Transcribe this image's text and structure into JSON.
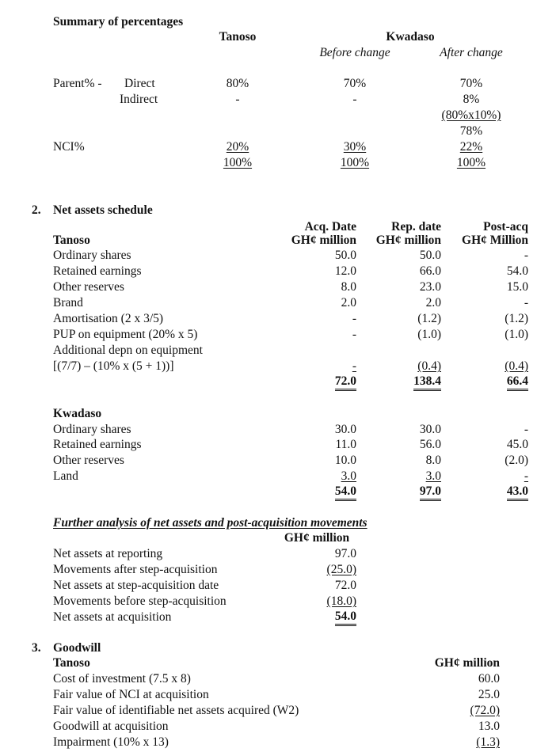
{
  "summary": {
    "title": "Summary of percentages",
    "headers": {
      "tanoso": "Tanoso",
      "kwadaso": "Kwadaso",
      "before": "Before change",
      "after": "After change"
    },
    "rows": [
      {
        "label": "Parent% -",
        "sub": "Direct",
        "tanoso": "80%",
        "before": "70%",
        "after": "70%"
      },
      {
        "label": "",
        "sub": "Indirect",
        "tanoso": "-",
        "before": "-",
        "after": "8%"
      },
      {
        "label": "",
        "sub": "",
        "tanoso": "",
        "before": "",
        "after": "(80%x10%)"
      },
      {
        "label": "",
        "sub": "",
        "tanoso": "",
        "before": "",
        "after": "78%"
      },
      {
        "label": "NCI%",
        "sub": "",
        "tanoso": "20%",
        "before": "30%",
        "after": "22%"
      },
      {
        "label": "",
        "sub": "",
        "tanoso": "100%",
        "before": "100%",
        "after": "100%"
      }
    ]
  },
  "net_assets": {
    "number": "2.",
    "title": "Net assets schedule",
    "col_headers": [
      {
        "top": "Acq. Date",
        "unit": "GH¢ million"
      },
      {
        "top": "Rep. date",
        "unit": "GH¢ million"
      },
      {
        "top": "Post-acq",
        "unit": "GH¢ Million"
      }
    ],
    "tanoso": {
      "heading": "Tanoso",
      "rows": [
        {
          "label": "Ordinary shares",
          "values": [
            "50.0",
            "50.0",
            "-"
          ]
        },
        {
          "label": "Retained earnings",
          "values": [
            "12.0",
            "66.0",
            "54.0"
          ]
        },
        {
          "label": "Other reserves",
          "values": [
            "8.0",
            "23.0",
            "15.0"
          ]
        },
        {
          "label": "Brand",
          "values": [
            "2.0",
            "2.0",
            "-"
          ]
        },
        {
          "label": "Amortisation (2 x 3/5)",
          "values": [
            "-",
            "(1.2)",
            "(1.2)"
          ]
        },
        {
          "label": "PUP on equipment (20% x 5)",
          "values": [
            "-",
            "(1.0)",
            "(1.0)"
          ]
        },
        {
          "label": "Additional depn on equipment",
          "values": [
            "",
            "",
            ""
          ]
        },
        {
          "label": "[(7/7) – (10% x (5 + 1))]",
          "values": [
            "-",
            "(0.4)",
            "(0.4)"
          ]
        }
      ],
      "totals": [
        "72.0",
        "138.4",
        "66.4"
      ]
    },
    "kwadaso": {
      "heading": "Kwadaso",
      "rows": [
        {
          "label": "Ordinary shares",
          "values": [
            "30.0",
            "30.0",
            "-"
          ]
        },
        {
          "label": "Retained earnings",
          "values": [
            "11.0",
            "56.0",
            "45.0"
          ]
        },
        {
          "label": "Other reserves",
          "values": [
            "10.0",
            "8.0",
            "(2.0)"
          ]
        },
        {
          "label": "Land",
          "values": [
            "3.0",
            "3.0",
            "-"
          ]
        }
      ],
      "totals": [
        "54.0",
        "97.0",
        "43.0"
      ]
    }
  },
  "further": {
    "title": "Further analysis of net assets and post-acquisition movements",
    "unit": "GH¢ million",
    "rows": [
      {
        "label": "Net assets at reporting",
        "value": "97.0"
      },
      {
        "label": "Movements after step-acquisition",
        "value": "(25.0)"
      },
      {
        "label": "Net assets at step-acquisition date",
        "value": "72.0"
      },
      {
        "label": "Movements before step-acquisition",
        "value": "(18.0)"
      },
      {
        "label": "Net assets at acquisition",
        "value": "54.0"
      }
    ]
  },
  "goodwill": {
    "number": "3.",
    "title": "Goodwill",
    "heading": "Tanoso",
    "unit": "GH¢ million",
    "rows": [
      {
        "label": "Cost of investment (7.5 x 8)",
        "value": "60.0"
      },
      {
        "label": "Fair value of NCI at acquisition",
        "value": "25.0"
      },
      {
        "label": "Fair value of identifiable net assets acquired (W2)",
        "value": "(72.0)"
      },
      {
        "label": "Goodwill at acquisition",
        "value": "13.0"
      },
      {
        "label": "Impairment (10% x 13)",
        "value": "(1.3)"
      }
    ]
  }
}
